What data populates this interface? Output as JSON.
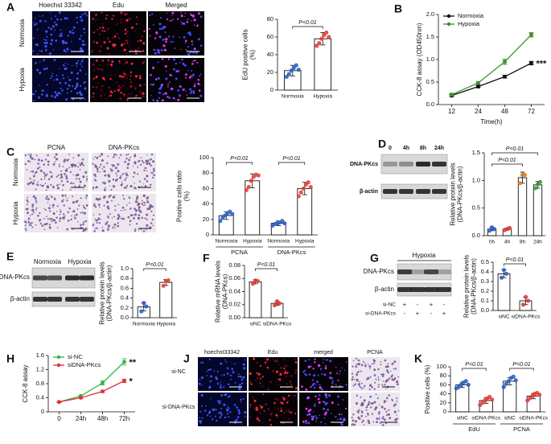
{
  "figure": {
    "letters": [
      "A",
      "B",
      "C",
      "D",
      "E",
      "F",
      "G",
      "H",
      "J",
      "K"
    ],
    "a_images": {
      "columns": [
        "Hoechst 33342",
        "Edu",
        "Merged"
      ],
      "rows": [
        "Normoxia",
        "Hypoxia"
      ]
    },
    "c_images": {
      "columns": [
        "PCNA",
        "DNA-PKcs"
      ],
      "rows": [
        "Normoxia",
        "Hypoxia"
      ]
    },
    "d_blot": {
      "lanes": [
        "0",
        "4h",
        "8h",
        "24h"
      ],
      "bands": [
        "DNA-PKcs",
        "β-actin"
      ]
    },
    "e_blot": {
      "lanes": [
        "Normoxia",
        "Hypoxia"
      ],
      "bands": [
        "DNA-PKcs",
        "β-actin"
      ]
    },
    "g_blot": {
      "title": "Hypoxia",
      "bands": [
        "DNA-PKcs",
        "β-actin"
      ],
      "conditions": [
        "si-NC",
        "si-DNA-PKcs"
      ],
      "signs": [
        [
          "+",
          "-",
          "+",
          "-"
        ],
        [
          "-",
          "+",
          "-",
          "+"
        ]
      ]
    },
    "j_images": {
      "columns": [
        "hoechst33342",
        "Edu",
        "merged",
        "PCNA"
      ],
      "rows": [
        "si-NC",
        "si-DNA-PKcs"
      ]
    }
  },
  "chart_data": [
    {
      "type": "bar",
      "y_label": [
        "EdU positive cells",
        "(%)"
      ],
      "categories": [
        "Normoxia",
        "Hypoxia"
      ],
      "values": [
        22,
        58
      ],
      "errors": [
        6,
        7
      ],
      "points": [
        [
          15,
          18,
          22,
          25,
          28,
          23
        ],
        [
          50,
          53,
          58,
          62,
          65,
          60
        ]
      ],
      "colors": [
        "#2f5fc4",
        "#e0403a"
      ],
      "ylim": [
        0,
        80
      ],
      "yticks": [
        0,
        20,
        40,
        60,
        80
      ],
      "annotations": [
        "P<0.01"
      ]
    },
    {
      "type": "line",
      "y_label": [
        "CCK-8 assay (OD450nm)"
      ],
      "x_label": "Time(h)",
      "categories": [
        "12",
        "24",
        "48",
        "72"
      ],
      "series": [
        {
          "name": "Normoxia",
          "color": "#111111",
          "values": [
            0.2,
            0.4,
            0.62,
            0.92
          ],
          "errors": [
            0.02,
            0.02,
            0.03,
            0.04
          ]
        },
        {
          "name": "Hypoxia",
          "color": "#3f8f2f",
          "values": [
            0.22,
            0.48,
            0.95,
            1.55
          ],
          "errors": [
            0.02,
            0.03,
            0.06,
            0.05
          ]
        }
      ],
      "ylim": [
        0,
        2
      ],
      "yticks": [
        {
          "value": 0,
          "label": "0.0"
        },
        0.5,
        {
          "value": 1,
          "label": "1.0"
        },
        1.5,
        {
          "value": 2,
          "label": "2.0"
        }
      ],
      "annotations": [
        "***"
      ]
    },
    {
      "type": "bar",
      "y_label": [
        "Positive cells ratio",
        "(%)"
      ],
      "categories": [
        "Normoxia",
        "Hypoxia",
        "Normoxia",
        "Hypoxia"
      ],
      "groups": [
        "PCNA",
        "DNA-PKcs"
      ],
      "values": [
        25,
        70,
        15,
        60
      ],
      "errors": [
        5,
        9,
        3,
        8
      ],
      "points": [
        [
          18,
          22,
          25,
          28,
          30,
          27
        ],
        [
          58,
          62,
          70,
          75,
          78,
          77
        ],
        [
          12,
          14,
          15,
          16,
          18,
          15
        ],
        [
          50,
          55,
          60,
          65,
          68,
          62
        ]
      ],
      "colors": [
        "#2f5fc4",
        "#e0403a",
        "#2f5fc4",
        "#e0403a"
      ],
      "ylim": [
        0,
        100
      ],
      "yticks": [
        0,
        20,
        40,
        60,
        80,
        100
      ],
      "annotations": [
        "P<0.01",
        "P<0.01"
      ]
    },
    {
      "type": "bar",
      "y_label": [
        "Relative protein levels",
        "(DNA-PKcs/β-actin)"
      ],
      "categories": [
        "0h",
        "4h",
        "8h",
        "24h"
      ],
      "values": [
        0.12,
        0.12,
        1.05,
        0.92
      ],
      "errors": [
        0.03,
        0.02,
        0.1,
        0.06
      ],
      "points": [
        [
          0.09,
          0.15,
          0.12
        ],
        [
          0.1,
          0.12,
          0.14
        ],
        [
          0.95,
          1.1,
          1.1
        ],
        [
          0.86,
          0.93,
          0.97
        ]
      ],
      "colors": [
        "#2f5fc4",
        "#e0403a",
        "#e07a20",
        "#3a9a3a"
      ],
      "ylim": [
        0,
        1.5
      ],
      "yticks": [
        {
          "value": 0,
          "label": "0.0"
        },
        0.5,
        {
          "value": 1,
          "label": "1.0"
        },
        1.5
      ],
      "annotations": [
        "P<0.01",
        "P<0.01"
      ]
    },
    {
      "type": "bar",
      "y_label": [
        "Relative protein levels",
        "(DNA-PKcs/β-actin)"
      ],
      "categories": [
        "Normoxia",
        "Hypoxia"
      ],
      "values": [
        0.22,
        0.72
      ],
      "errors": [
        0.08,
        0.06
      ],
      "points": [
        [
          0.13,
          0.3,
          0.23
        ],
        [
          0.65,
          0.75,
          0.76
        ]
      ],
      "colors": [
        "#2f5fc4",
        "#e0403a"
      ],
      "ylim": [
        0,
        1
      ],
      "yticks": [
        {
          "value": 0,
          "label": "0.0"
        },
        0.2,
        0.4,
        0.6,
        0.8,
        {
          "value": 1,
          "label": "1.0"
        }
      ],
      "annotations": [
        "P<0.01"
      ]
    },
    {
      "type": "bar",
      "y_label": [
        "Relative mRNA levels",
        "(DNA-PKcs)"
      ],
      "categories": [
        "siNC",
        "siDNA-PKcs"
      ],
      "values": [
        0.055,
        0.022
      ],
      "errors": [
        0.003,
        0.003
      ],
      "points": [
        [
          0.052,
          0.057,
          0.056
        ],
        [
          0.019,
          0.025,
          0.022
        ]
      ],
      "colors": [
        "#e0403a",
        "#e0403a"
      ],
      "ylim": [
        0,
        0.08
      ],
      "yticks": [
        {
          "value": 0,
          "label": "0.00"
        },
        0.02,
        0.04,
        0.06,
        0.08
      ],
      "annotations": [
        "P<0.01"
      ]
    },
    {
      "type": "bar",
      "y_label": [
        "Relative protein levels",
        "(DNA-PKcs/β-actin)"
      ],
      "categories": [
        "siNC",
        "siDNA-PKcs"
      ],
      "values": [
        0.38,
        0.1
      ],
      "errors": [
        0.04,
        0.04
      ],
      "points": [
        [
          0.34,
          0.42,
          0.38
        ],
        [
          0.06,
          0.14,
          0.1
        ]
      ],
      "colors": [
        "#2f5fc4",
        "#e0403a"
      ],
      "ylim": [
        0,
        0.5
      ],
      "yticks": [
        {
          "value": 0,
          "label": "0.0"
        },
        0.1,
        0.2,
        0.3,
        0.4,
        0.5
      ],
      "annotations": [
        "P<0.01"
      ]
    },
    {
      "type": "line",
      "y_label": [
        "CCK-8 assay"
      ],
      "categories": [
        "0",
        "24h",
        "48h",
        "72h"
      ],
      "series": [
        {
          "name": "si-NC",
          "color": "#2db84a",
          "values": [
            0.28,
            0.45,
            0.82,
            1.42
          ],
          "errors": [
            0.02,
            0.03,
            0.06,
            0.09
          ]
        },
        {
          "name": "siDNA-PKcs",
          "color": "#e0303a",
          "values": [
            0.28,
            0.4,
            0.58,
            0.88
          ],
          "errors": [
            0.02,
            0.02,
            0.03,
            0.05
          ]
        }
      ],
      "ylim": [
        0,
        1.6
      ],
      "yticks": [
        0,
        0.4,
        0.8,
        1.2,
        1.6
      ],
      "annotations": [
        "**",
        "*"
      ]
    },
    {
      "type": "bar",
      "y_label": [
        "Positive cells (%)"
      ],
      "categories": [
        "siNC",
        "siDNA-PKcs",
        "siNC",
        "siDNA-PKcs"
      ],
      "groups": [
        "EdU",
        "PCNA"
      ],
      "values": [
        60,
        25,
        68,
        35
      ],
      "errors": [
        6,
        6,
        8,
        6
      ],
      "points": [
        [
          52,
          55,
          60,
          65,
          68,
          60
        ],
        [
          15,
          20,
          25,
          30,
          33,
          27
        ],
        [
          55,
          62,
          68,
          75,
          78,
          70
        ],
        [
          25,
          30,
          35,
          40,
          42,
          38
        ]
      ],
      "colors": [
        "#2f5fc4",
        "#e0403a",
        "#2f5fc4",
        "#e0403a"
      ],
      "ylim": [
        0,
        100
      ],
      "yticks": [
        0,
        20,
        40,
        60,
        80,
        100
      ],
      "annotations": [
        "P<0.01",
        "P<0.01"
      ]
    }
  ]
}
